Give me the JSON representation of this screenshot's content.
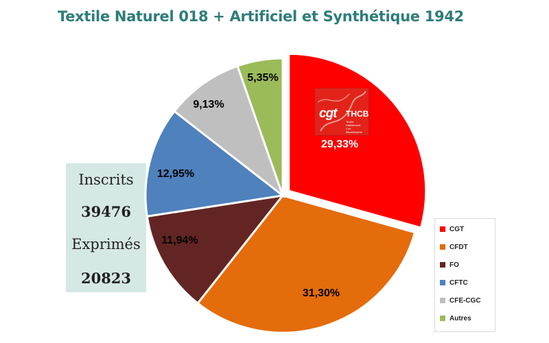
{
  "header": {
    "title": "Textile Naturel 018 + Artificiel et Synthétique 1942"
  },
  "colors": {
    "title": "#2e7d7a",
    "stats_bg": "#d5e8e5"
  },
  "stats": {
    "inscrits_label": "Inscrits",
    "inscrits_value": "39476",
    "exprimes_label": "Exprimés",
    "exprimes_value": "20823"
  },
  "logo": {
    "text_main": "cgt",
    "text_sub": "THCB",
    "icon": "cgt-logo-icon"
  },
  "chart_data": {
    "type": "pie",
    "title": "Textile Naturel 018 + Artificiel et Synthétique 1942",
    "legend_position": "bottom-right",
    "slices": [
      {
        "label": "CGT",
        "value": 29.33,
        "display": "29,33%",
        "color": "#ff0000",
        "exploded": true,
        "label_color": "#ffffff"
      },
      {
        "label": "CFDT",
        "value": 31.3,
        "display": "31,30%",
        "color": "#e46c0a",
        "exploded": false,
        "label_color": "#000000"
      },
      {
        "label": "FO",
        "value": 11.94,
        "display": "11,94%",
        "color": "#632523",
        "exploded": false,
        "label_color": "#000000"
      },
      {
        "label": "CFTC",
        "value": 12.95,
        "display": "12,95%",
        "color": "#4f81bd",
        "exploded": false,
        "label_color": "#000000"
      },
      {
        "label": "CFE-CGC",
        "value": 9.13,
        "display": "9,13%",
        "color": "#bfbfbf",
        "exploded": false,
        "label_color": "#000000"
      },
      {
        "label": "Autres",
        "value": 5.35,
        "display": "5,35%",
        "color": "#9bbb59",
        "exploded": false,
        "label_color": "#000000"
      }
    ]
  }
}
